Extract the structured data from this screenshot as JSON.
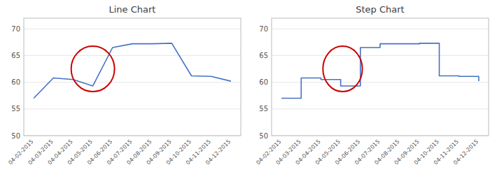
{
  "chart_data": [
    {
      "type": "line",
      "title": "Line Chart",
      "categories": [
        "04-02-2015",
        "04-03-2015",
        "04-04-2015",
        "04-05-2015",
        "04-06-2015",
        "04-07-2015",
        "04-08-2015",
        "04-09-2015",
        "04-10-2015",
        "04-11-2015",
        "04-12-2015"
      ],
      "values": [
        57.0,
        60.8,
        60.5,
        59.3,
        66.5,
        67.2,
        67.2,
        67.3,
        61.2,
        61.1,
        60.2
      ],
      "color": "#4472C4",
      "ylim": [
        50,
        72
      ],
      "yticks": [
        50,
        55,
        60,
        65,
        70
      ],
      "grid": true,
      "highlight": {
        "x": 3.0,
        "y": 62.5,
        "width": 2.2,
        "height": 8.5,
        "color": "#cc0000"
      }
    },
    {
      "type": "step",
      "title": "Step Chart",
      "categories": [
        "04-02-2015",
        "04-03-2015",
        "04-04-2015",
        "04-05-2015",
        "04-06-2015",
        "04-07-2015",
        "04-08-2015",
        "04-09-2015",
        "04-10-2015",
        "04-11-2015",
        "04-12-2015"
      ],
      "values": [
        57.0,
        60.8,
        60.5,
        59.3,
        66.5,
        67.2,
        67.2,
        67.3,
        61.2,
        61.1,
        60.2
      ],
      "color": "#4472C4",
      "ylim": [
        50,
        72
      ],
      "yticks": [
        50,
        55,
        60,
        65,
        70
      ],
      "grid": true,
      "highlight": {
        "x": 3.1,
        "y": 62.5,
        "width": 2.0,
        "height": 8.5,
        "color": "#cc0000"
      }
    }
  ]
}
